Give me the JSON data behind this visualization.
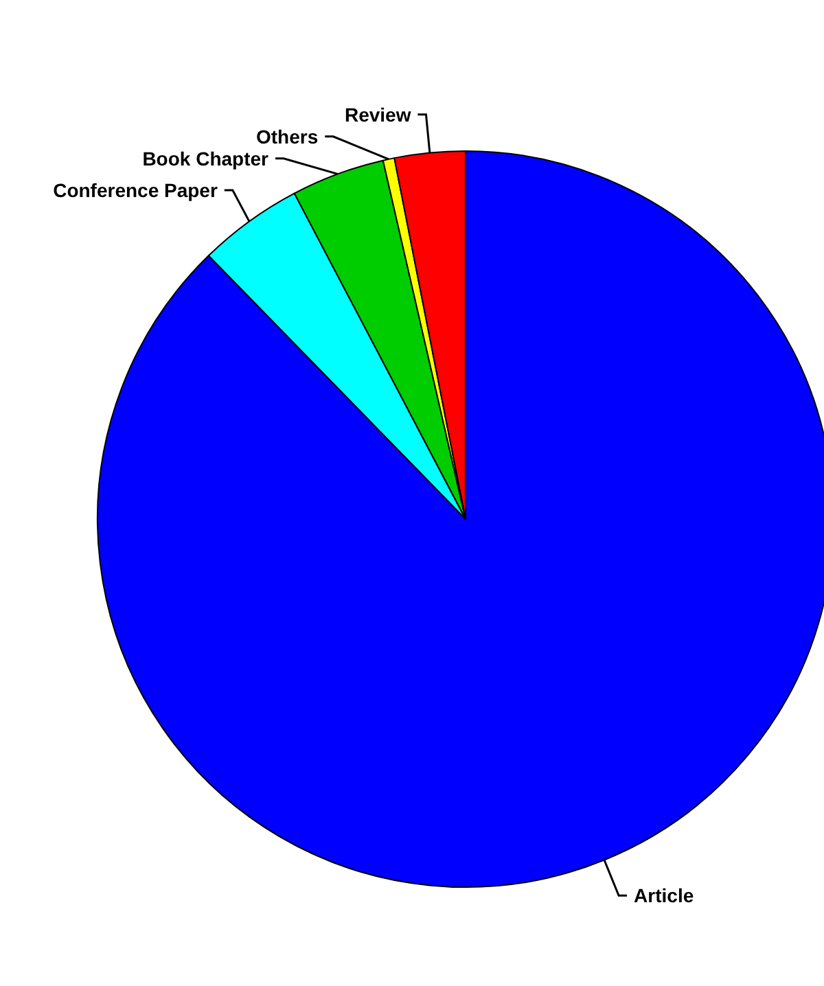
{
  "chart_data": {
    "type": "pie",
    "categories": [
      "Article",
      "Conference Paper",
      "Book Chapter",
      "Others",
      "Review"
    ],
    "values": [
      87.7,
      4.6,
      4.1,
      0.5,
      3.1
    ],
    "colors": [
      "#0000ff",
      "#00ffff",
      "#00cd00",
      "#ffff00",
      "#ff0000"
    ],
    "legend": false
  }
}
